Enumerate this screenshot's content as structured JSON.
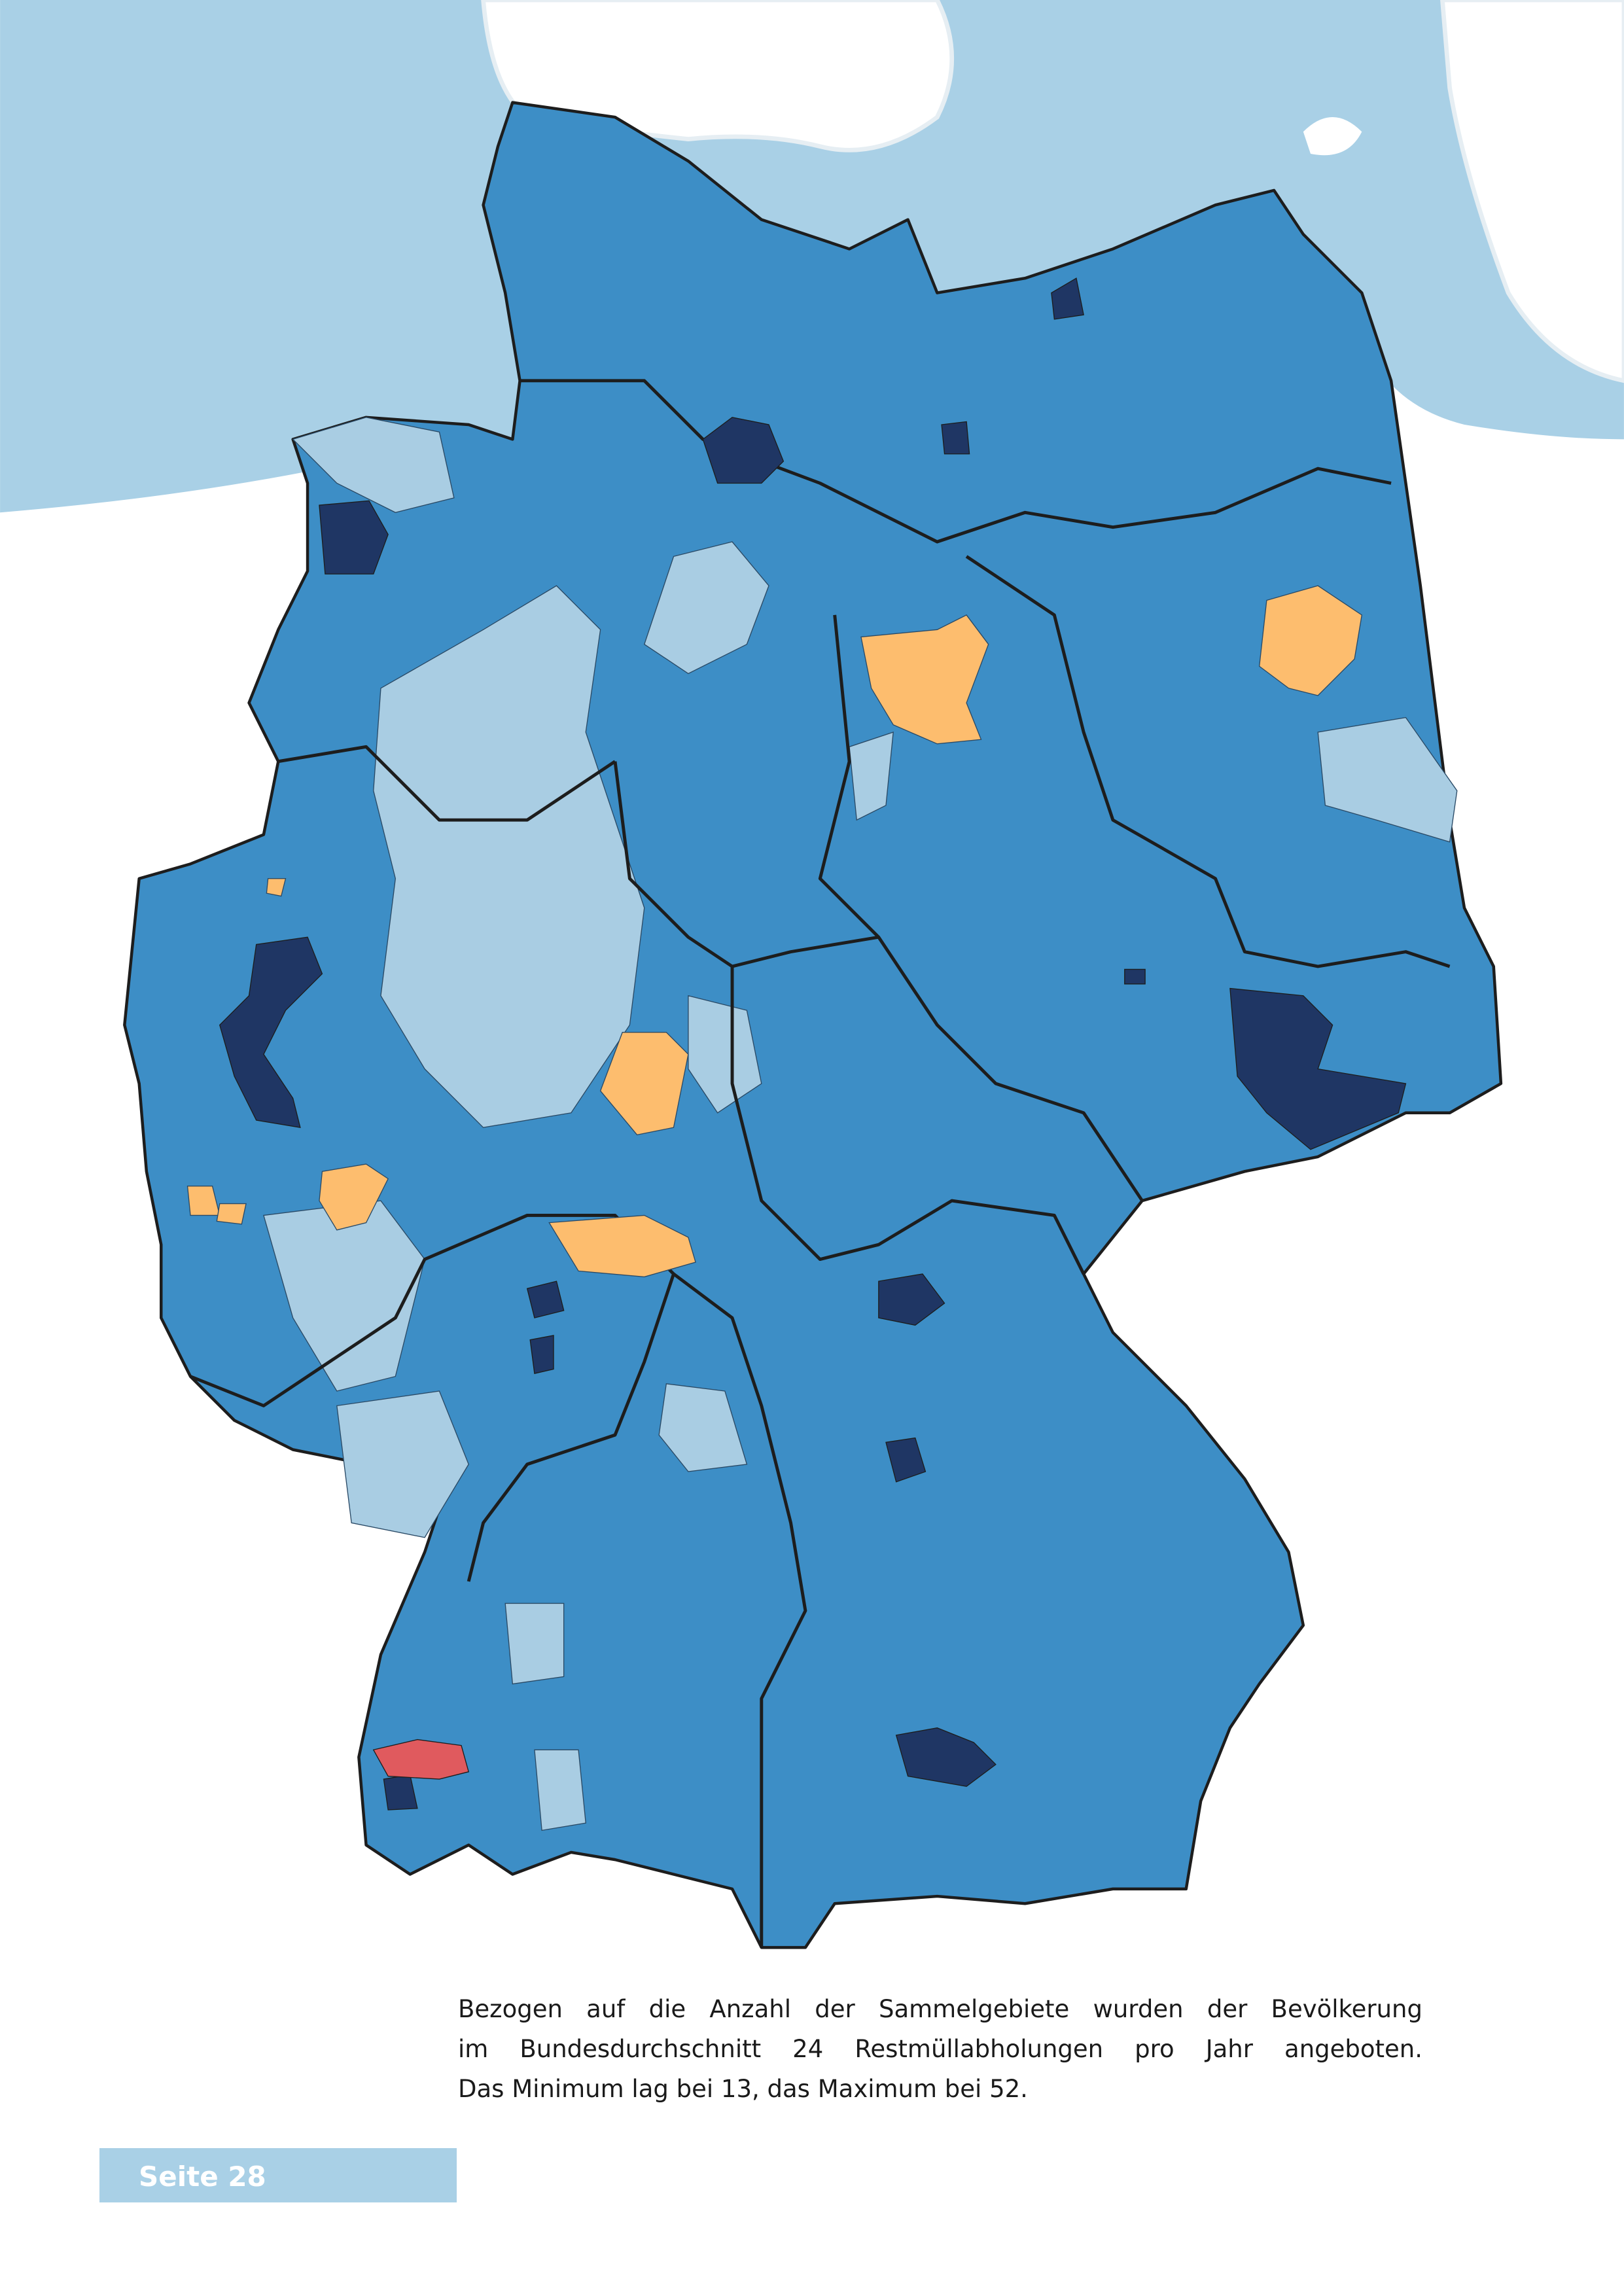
{
  "caption": {
    "lines": [
      "Bezogen auf die Anzahl der Sammelgebiete wurden der Bevölkerung",
      "im Bundesdurchschnitt 24 Restmüllabholungen pro Jahr angeboten.",
      "Das Minimum lag bei 13, das Maximum bei 52."
    ]
  },
  "footer": {
    "page_label": "Seite 28"
  }
}
